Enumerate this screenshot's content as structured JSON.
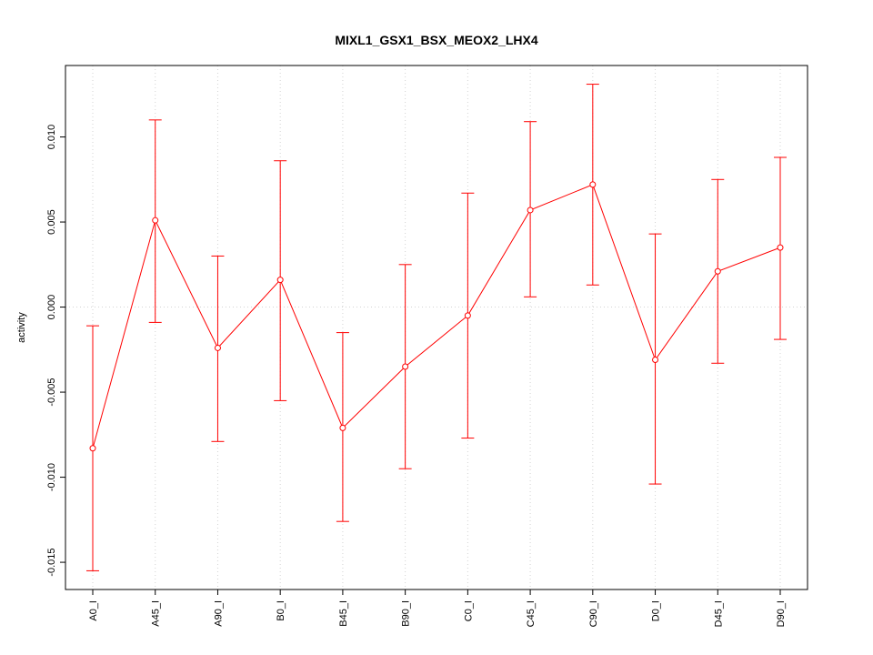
{
  "chart_data": {
    "type": "line",
    "title": "MIXL1_GSX1_BSX_MEOX2_LHX4",
    "xlabel": "",
    "ylabel": "activity",
    "categories": [
      "A0_I",
      "A45_I",
      "A90_I",
      "B0_I",
      "B45_I",
      "B90_I",
      "C0_I",
      "C45_I",
      "C90_I",
      "D0_I",
      "D45_I",
      "D90_I"
    ],
    "series": [
      {
        "values": [
          -0.0083,
          0.0051,
          -0.0024,
          0.0016,
          -0.0071,
          -0.0035,
          -0.0005,
          0.0057,
          0.0072,
          -0.0031,
          0.0021,
          0.0035
        ],
        "lower": [
          -0.0155,
          -0.0009,
          -0.0079,
          -0.0055,
          -0.0126,
          -0.0095,
          -0.0077,
          0.0006,
          0.0013,
          -0.0104,
          -0.0033,
          -0.0019
        ],
        "upper": [
          -0.0011,
          0.011,
          0.003,
          0.0086,
          -0.0015,
          0.0025,
          0.0067,
          0.0109,
          0.0131,
          0.0043,
          0.0075,
          0.0088
        ],
        "color": "#ff0000"
      }
    ],
    "yticks": [
      -0.015,
      -0.01,
      -0.005,
      0.0,
      0.005,
      0.01
    ],
    "ytick_labels": [
      "-0.015",
      "-0.010",
      "-0.005",
      "0.000",
      "0.005",
      "0.010"
    ],
    "ylim": [
      -0.0166,
      0.0142
    ],
    "grid": true,
    "grid_color": "#d3d3d3",
    "reference_line_y": 0.0
  }
}
